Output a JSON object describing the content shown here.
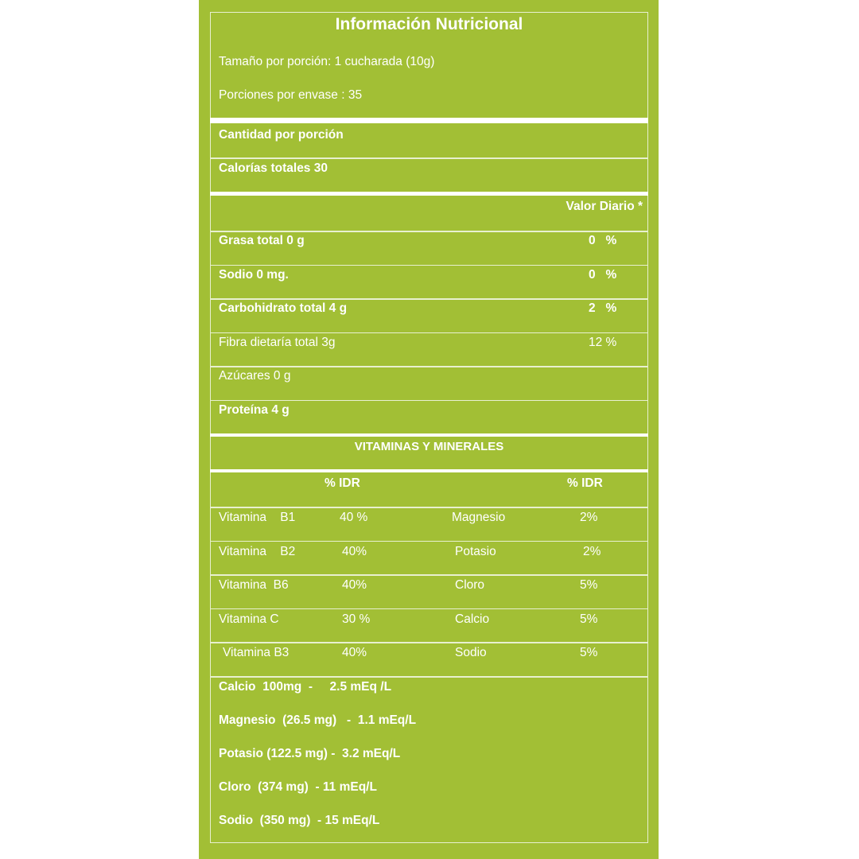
{
  "colors": {
    "background": "#a2bf35",
    "text": "#ffffff"
  },
  "header": {
    "title": "Información Nutricional",
    "serving_size": "Tamaño por porción: 1 cucharada (10g)",
    "servings_per_container": "Porciones por envase : 35"
  },
  "amount_per_serving": "Cantidad por porción",
  "calories": "Calorías totales 30",
  "daily_value_header": "Valor Diario *",
  "nutrients": [
    {
      "label": "Grasa total 0 g",
      "value": "0   %",
      "bold": true
    },
    {
      "label": "Sodio 0 mg.",
      "value": "0   %",
      "bold": true
    },
    {
      "label": "Carbohidrato total 4 g",
      "value": "2   %",
      "bold": true
    },
    {
      "label": "Fibra dietaría total 3g",
      "value": "12 %",
      "bold": false
    },
    {
      "label": "Azúcares 0 g",
      "value": "",
      "bold": false
    },
    {
      "label": "Proteína 4 g",
      "value": "",
      "bold": true
    }
  ],
  "vitamins_header": "VITAMINAS Y MINERALES",
  "idr_header_left": "% IDR",
  "idr_header_right": "% IDR",
  "vitamins": [
    {
      "name": "Vitamina    B1",
      "value": "40 %",
      "mineral": "Magnesio",
      "mineral_value": "2%"
    },
    {
      "name": "Vitamina    B2",
      "value": "40%",
      "mineral": "Potasio",
      "mineral_value": "2%"
    },
    {
      "name": "Vitamina  B6",
      "value": "40%",
      "mineral": "Cloro",
      "mineral_value": "5%"
    },
    {
      "name": "Vitamina C",
      "value": "30 %",
      "mineral": "Calcio",
      "mineral_value": "5%"
    },
    {
      "name": "Vitamina B3",
      "value": "40%",
      "mineral": "Sodio",
      "mineral_value": "5%"
    }
  ],
  "electrolytes": [
    "Calcio  100mg  -     2.5 mEq /L",
    "Magnesio  (26.5 mg)   -  1.1 mEq/L",
    "Potasio (122.5 mg) -  3.2 mEq/L",
    "Cloro  (374 mg)  - 11 mEq/L",
    "Sodio  (350 mg)  - 15 mEq/L"
  ]
}
